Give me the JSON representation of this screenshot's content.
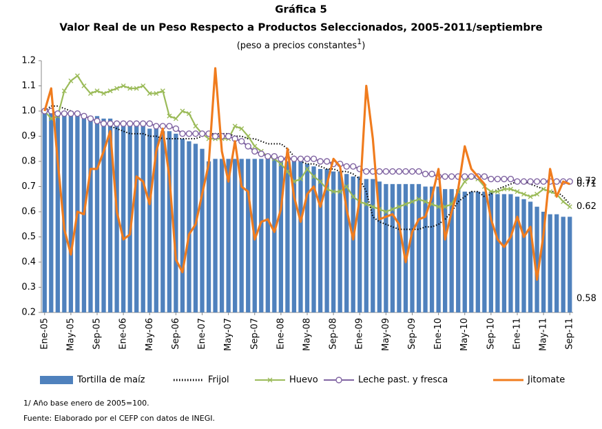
{
  "chart_data": {
    "type": "combo",
    "title": "Gráfica 5",
    "subtitle": "Valor Real de un Peso Respecto a Productos Seleccionados, 2005-2011/septiembre",
    "unit_note": [
      "(peso a precios constantes",
      "1",
      ")"
    ],
    "footnotes": [
      "1/ Año base enero de 2005=100.",
      "Fuente: Elaborado por el CEFP con datos de INEGI."
    ],
    "categories": [
      "Ene-05",
      null,
      null,
      null,
      "May-05",
      null,
      null,
      null,
      "Sep-05",
      null,
      null,
      null,
      "Ene-06",
      null,
      null,
      null,
      "May-06",
      null,
      null,
      null,
      "Sep-06",
      null,
      null,
      null,
      "Ene-07",
      null,
      null,
      null,
      "May-07",
      null,
      null,
      null,
      "Sep-07",
      null,
      null,
      null,
      "Ene-08",
      null,
      null,
      null,
      "May-08",
      null,
      null,
      null,
      "Sep-08",
      null,
      null,
      null,
      "Ene-09",
      null,
      null,
      null,
      "May-09",
      null,
      null,
      null,
      "Sep-09",
      null,
      null,
      null,
      "Ene-10",
      null,
      null,
      null,
      "May-10",
      null,
      null,
      null,
      "Sep-10",
      null,
      null,
      null,
      "Ene-11",
      null,
      null,
      null,
      "May-11",
      null,
      null,
      null,
      "Sep-11"
    ],
    "ylim": [
      0.2,
      1.2
    ],
    "yticks": [
      0.2,
      0.3,
      0.4,
      0.5,
      0.6,
      0.7,
      0.8,
      0.9,
      {
        "value": 1,
        "label": "1.0"
      },
      1.1,
      1.2
    ],
    "legend": "bottom",
    "series": [
      {
        "name": "Tortilla de maíz",
        "type": "bar",
        "color": "#4f81bd",
        "end_label": true,
        "values": [
          1.0,
          0.99,
          0.99,
          0.99,
          0.99,
          0.99,
          0.99,
          0.98,
          0.98,
          0.97,
          0.97,
          0.96,
          0.96,
          0.95,
          0.95,
          0.94,
          0.93,
          0.93,
          0.92,
          0.92,
          0.91,
          0.89,
          0.88,
          0.87,
          0.85,
          0.8,
          0.81,
          0.81,
          0.81,
          0.81,
          0.81,
          0.81,
          0.81,
          0.81,
          0.81,
          0.81,
          0.8,
          0.8,
          0.8,
          0.8,
          0.79,
          0.78,
          0.77,
          0.77,
          0.76,
          0.76,
          0.75,
          0.74,
          0.74,
          0.73,
          0.73,
          0.72,
          0.71,
          0.71,
          0.71,
          0.71,
          0.71,
          0.71,
          0.7,
          0.7,
          0.7,
          0.69,
          0.69,
          0.69,
          0.68,
          0.68,
          0.68,
          0.68,
          0.68,
          0.67,
          0.67,
          0.67,
          0.66,
          0.65,
          0.64,
          0.62,
          0.6,
          0.59,
          0.59,
          0.58,
          0.58
        ]
      },
      {
        "name": "Frijol",
        "type": "line",
        "color": "#000000",
        "dash": "dotted",
        "end_label": false,
        "values": [
          1.0,
          1.02,
          1.02,
          1.01,
          1.0,
          0.99,
          0.98,
          0.97,
          0.96,
          0.95,
          0.94,
          0.93,
          0.92,
          0.91,
          0.91,
          0.91,
          0.9,
          0.9,
          0.89,
          0.89,
          0.89,
          0.89,
          0.89,
          0.89,
          0.9,
          0.91,
          0.91,
          0.91,
          0.91,
          0.9,
          0.9,
          0.89,
          0.89,
          0.88,
          0.87,
          0.87,
          0.87,
          0.85,
          0.82,
          0.8,
          0.79,
          0.79,
          0.78,
          0.77,
          0.77,
          0.76,
          0.76,
          0.75,
          0.73,
          0.68,
          0.58,
          0.56,
          0.55,
          0.54,
          0.53,
          0.53,
          0.53,
          0.53,
          0.54,
          0.54,
          0.55,
          0.57,
          0.6,
          0.64,
          0.66,
          0.68,
          0.68,
          0.66,
          0.67,
          0.69,
          0.7,
          0.71,
          0.72,
          0.72,
          0.71,
          0.7,
          0.69,
          0.68,
          0.68,
          0.66,
          0.63
        ]
      },
      {
        "name": "Huevo",
        "type": "line",
        "color": "#9bbb59",
        "marker": "x",
        "end_label": true,
        "values": [
          1.0,
          0.97,
          0.98,
          1.08,
          1.12,
          1.14,
          1.1,
          1.07,
          1.08,
          1.07,
          1.08,
          1.09,
          1.1,
          1.09,
          1.09,
          1.1,
          1.07,
          1.07,
          1.08,
          0.98,
          0.97,
          1.0,
          0.99,
          0.94,
          0.91,
          0.89,
          0.89,
          0.89,
          0.89,
          0.94,
          0.93,
          0.9,
          0.86,
          0.84,
          0.82,
          0.81,
          0.79,
          0.76,
          0.72,
          0.73,
          0.77,
          0.74,
          0.72,
          0.69,
          0.68,
          0.68,
          0.7,
          0.66,
          0.64,
          0.63,
          0.62,
          0.61,
          0.6,
          0.61,
          0.62,
          0.63,
          0.64,
          0.65,
          0.64,
          0.63,
          0.62,
          0.62,
          0.63,
          0.68,
          0.72,
          0.74,
          0.73,
          0.7,
          0.68,
          0.68,
          0.69,
          0.69,
          0.68,
          0.67,
          0.66,
          0.67,
          0.69,
          0.68,
          0.67,
          0.64,
          0.62
        ]
      },
      {
        "name": "Leche past. y fresca",
        "type": "line",
        "color": "#8064a2",
        "marker": "circle",
        "end_label": true,
        "values": [
          1.0,
          1.0,
          0.99,
          0.99,
          0.99,
          0.99,
          0.98,
          0.97,
          0.96,
          0.95,
          0.95,
          0.95,
          0.95,
          0.95,
          0.95,
          0.95,
          0.95,
          0.94,
          0.94,
          0.94,
          0.93,
          0.91,
          0.91,
          0.91,
          0.91,
          0.91,
          0.9,
          0.9,
          0.9,
          0.89,
          0.88,
          0.86,
          0.84,
          0.83,
          0.82,
          0.82,
          0.81,
          0.81,
          0.81,
          0.81,
          0.81,
          0.81,
          0.8,
          0.8,
          0.79,
          0.79,
          0.78,
          0.78,
          0.77,
          0.76,
          0.76,
          0.76,
          0.76,
          0.76,
          0.76,
          0.76,
          0.76,
          0.76,
          0.75,
          0.75,
          0.74,
          0.74,
          0.74,
          0.74,
          0.74,
          0.74,
          0.74,
          0.74,
          0.73,
          0.73,
          0.73,
          0.73,
          0.72,
          0.72,
          0.72,
          0.72,
          0.72,
          0.72,
          0.72,
          0.72,
          0.72
        ]
      },
      {
        "name": "Jitomate",
        "type": "line",
        "color": "#f07c1e",
        "end_label": true,
        "values": [
          1.0,
          1.09,
          0.8,
          0.53,
          0.43,
          0.6,
          0.59,
          0.77,
          0.77,
          0.84,
          0.92,
          0.6,
          0.49,
          0.51,
          0.74,
          0.72,
          0.63,
          0.84,
          0.93,
          0.74,
          0.41,
          0.36,
          0.51,
          0.55,
          0.67,
          0.79,
          1.17,
          0.84,
          0.72,
          0.88,
          0.7,
          0.68,
          0.49,
          0.56,
          0.57,
          0.52,
          0.61,
          0.85,
          0.66,
          0.56,
          0.67,
          0.7,
          0.62,
          0.71,
          0.81,
          0.78,
          0.61,
          0.49,
          0.65,
          1.1,
          0.89,
          0.57,
          0.58,
          0.59,
          0.55,
          0.4,
          0.52,
          0.57,
          0.58,
          0.66,
          0.77,
          0.49,
          0.6,
          0.69,
          0.86,
          0.77,
          0.74,
          0.71,
          0.57,
          0.49,
          0.46,
          0.5,
          0.58,
          0.5,
          0.54,
          0.33,
          0.51,
          0.77,
          0.66,
          0.72,
          0.71
        ]
      }
    ]
  }
}
